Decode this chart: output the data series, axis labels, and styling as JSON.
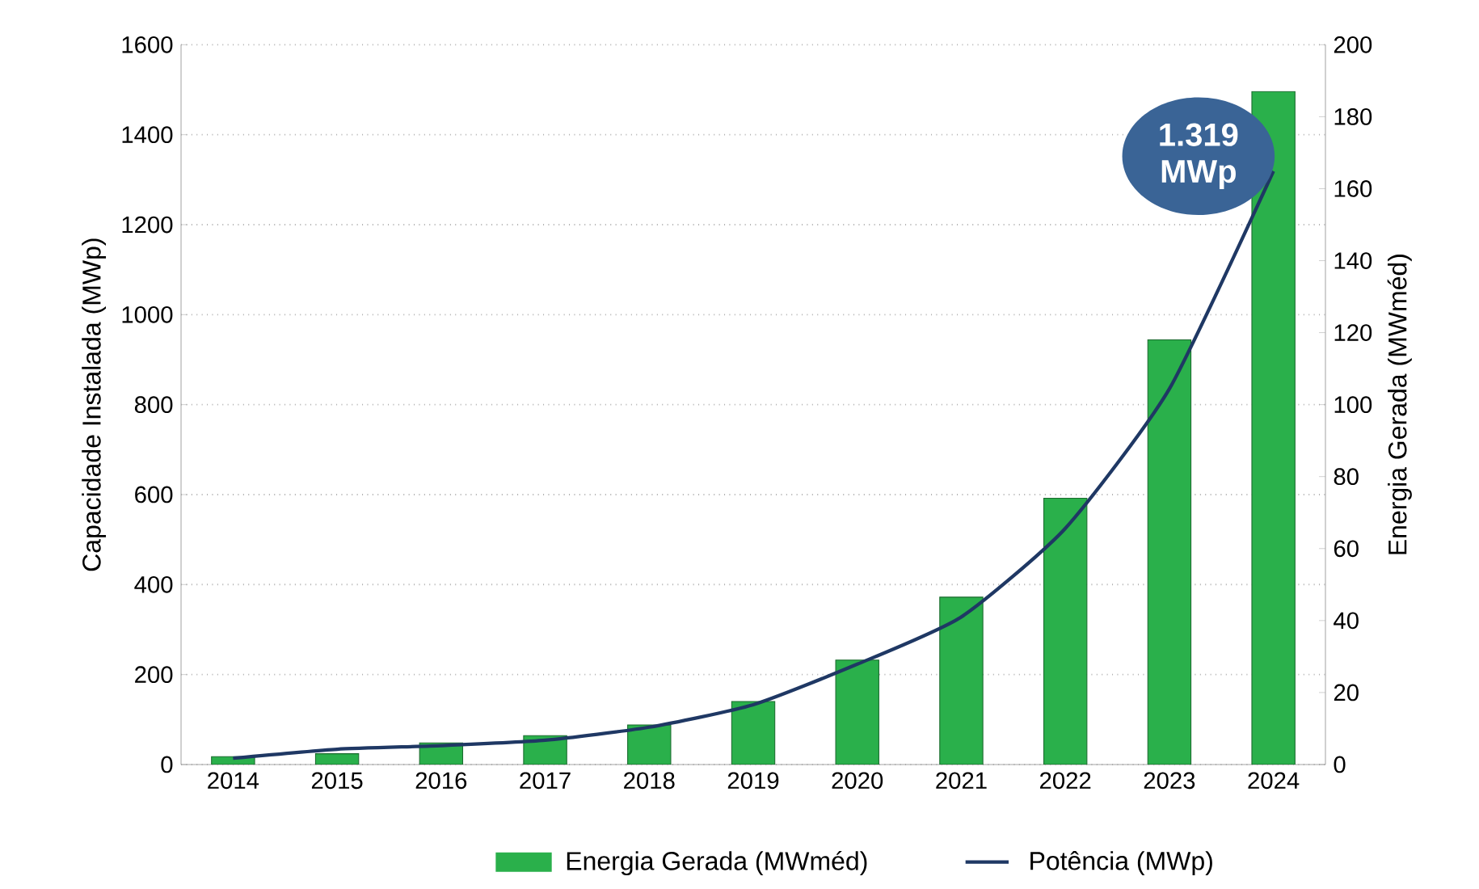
{
  "chart_data": {
    "type": "bar",
    "categories": [
      "2014",
      "2015",
      "2016",
      "2017",
      "2018",
      "2019",
      "2020",
      "2021",
      "2022",
      "2023",
      "2024"
    ],
    "series": [
      {
        "name": "Energia Gerada (MWméd)",
        "axis": "y2",
        "color": "#2ab04b",
        "values": [
          2.2,
          3,
          6,
          8,
          11,
          17.5,
          29,
          46.5,
          74,
          118,
          187
        ]
      },
      {
        "name": "Potência (MWp)",
        "type": "line",
        "color": "#1f3864",
        "values": [
          14,
          34,
          42,
          54,
          83,
          133,
          223,
          328,
          525,
          835,
          1319
        ]
      }
    ],
    "ylabel": "Capacidade Instalada (MWp)",
    "y2label": "Energia Gerada (MWméd)",
    "ylim": [
      0,
      1600
    ],
    "yticks": [
      0,
      200,
      400,
      600,
      800,
      1000,
      1200,
      1400,
      1600
    ],
    "y2lim": [
      0,
      200
    ],
    "y2ticks": [
      0,
      20,
      40,
      60,
      80,
      100,
      120,
      140,
      160,
      180,
      200
    ],
    "grid": "y",
    "legend": "bottom",
    "marker": "none",
    "annotations": [
      {
        "text": "1.319 MWp",
        "x": "2024",
        "y": 1319
      }
    ]
  }
}
